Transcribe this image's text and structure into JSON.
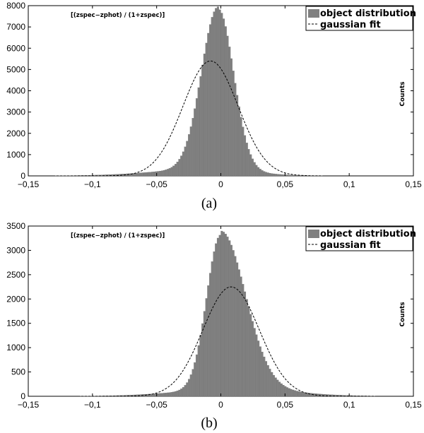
{
  "figure": {
    "captions": [
      "(a)",
      "(b)"
    ]
  },
  "chart_data": [
    {
      "type": "bar",
      "subtype": "histogram",
      "annotation": "[(zspec−zphot) / (1+zspec)]",
      "xlabel": "",
      "ylabel": "Counts",
      "xlim": [
        -0.15,
        0.15
      ],
      "ylim": [
        0,
        8000
      ],
      "xticks": [
        -0.15,
        -0.1,
        -0.05,
        0,
        0.05,
        0.1,
        0.15
      ],
      "xtick_labels": [
        "−0,15",
        "−0,1",
        "−0,05",
        "0",
        "0,05",
        "0,1",
        "0,15"
      ],
      "yticks": [
        0,
        1000,
        2000,
        3000,
        4000,
        5000,
        6000,
        7000,
        8000
      ],
      "ytick_labels": [
        "0",
        "1000",
        "2000",
        "3000",
        "4000",
        "5000",
        "6000",
        "7000",
        "8000"
      ],
      "legend": {
        "position": "top-right",
        "entries": [
          "object distribution",
          "gaussian fit"
        ]
      },
      "grid": false,
      "histogram": {
        "bin_width": 0.0015,
        "peak_x": -0.002,
        "peak_count": 7600,
        "sigma_left": 0.013,
        "sigma_right": 0.012,
        "tail_left_amp": 350,
        "tail_left_sigma": 0.045,
        "tail_right_amp": 250,
        "tail_right_sigma": 0.03,
        "x_range": [
          -0.15,
          0.085
        ]
      },
      "series": [
        {
          "name": "gaussian fit",
          "kind": "gaussian",
          "mean": -0.008,
          "sigma": 0.0215,
          "amplitude": 5400,
          "x_range": [
            -0.15,
            0.15
          ]
        }
      ]
    },
    {
      "type": "bar",
      "subtype": "histogram",
      "annotation": "[(zspec−zphot) / (1+zspec)]",
      "xlabel": "",
      "ylabel": "Counts",
      "xlim": [
        -0.15,
        0.15
      ],
      "ylim": [
        0,
        3500
      ],
      "xticks": [
        -0.15,
        -0.1,
        -0.05,
        0,
        0.05,
        0.1,
        0.15
      ],
      "xtick_labels": [
        "−0,15",
        "−0,1",
        "−0,05",
        "0",
        "0,05",
        "0,1",
        "0,15"
      ],
      "yticks": [
        0,
        500,
        1000,
        1500,
        2000,
        2500,
        3000,
        3500
      ],
      "ytick_labels": [
        "0",
        "500",
        "1000",
        "1500",
        "2000",
        "2500",
        "3000",
        "3500"
      ],
      "legend": {
        "position": "top-right",
        "entries": [
          "object distribution",
          "gaussian fit"
        ]
      },
      "grid": false,
      "histogram": {
        "bin_width": 0.0015,
        "peak_x": 0.0,
        "peak_count": 3200,
        "sigma_left": 0.011,
        "sigma_right": 0.019,
        "tail_left_amp": 120,
        "tail_left_sigma": 0.04,
        "tail_right_amp": 200,
        "tail_right_sigma": 0.045,
        "x_range": [
          -0.15,
          0.12
        ]
      },
      "series": [
        {
          "name": "gaussian fit",
          "kind": "gaussian",
          "mean": 0.008,
          "sigma": 0.022,
          "amplitude": 2250,
          "x_range": [
            -0.15,
            0.15
          ]
        }
      ]
    }
  ]
}
